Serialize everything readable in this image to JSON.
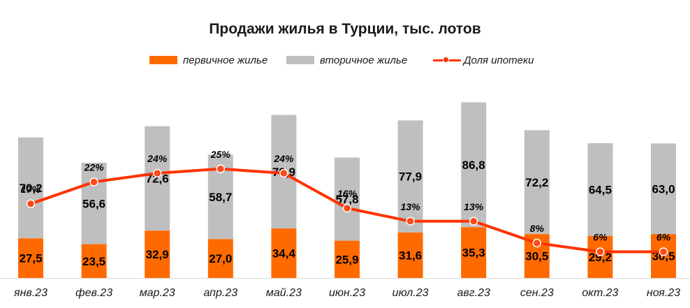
{
  "chart_data": {
    "type": "bar",
    "stacked": true,
    "title": "Продажи жилья в Турции, тыс. лотов",
    "categories": [
      "янв.23",
      "фев.23",
      "мар.23",
      "апр.23",
      "май.23",
      "июн.23",
      "июл.23",
      "авг.23",
      "сен.23",
      "окт.23",
      "ноя.23"
    ],
    "series": [
      {
        "name": "первичное жилье",
        "values": [
          27.5,
          23.5,
          32.9,
          27.0,
          34.4,
          25.9,
          31.6,
          35.3,
          30.5,
          29.2,
          30.5
        ],
        "color": "#ff6a00"
      },
      {
        "name": "вторичное жилье",
        "values": [
          70.2,
          56.6,
          72.6,
          58.7,
          78.9,
          57.8,
          77.9,
          86.8,
          72.2,
          64.5,
          63.0
        ],
        "color": "#bfbfbf"
      }
    ],
    "line_series": {
      "name": "Доля ипотеки",
      "values": [
        17,
        22,
        24,
        25,
        24,
        16,
        13,
        13,
        8,
        6,
        6
      ],
      "unit": "%",
      "color": "#ff3300"
    },
    "bar_labels": {
      "primary": [
        "27,5",
        "23,5",
        "32,9",
        "27,0",
        "34,4",
        "25,9",
        "31,6",
        "35,3",
        "30,5",
        "29,2",
        "30,5"
      ],
      "secondary": [
        "70,2",
        "56,6",
        "72,6",
        "58,7",
        "78,9",
        "57,8",
        "77,9",
        "86,8",
        "72,2",
        "64,5",
        "63,0"
      ],
      "line": [
        "17%",
        "22%",
        "24%",
        "25%",
        "24%",
        "16%",
        "13%",
        "13%",
        "8%",
        "6%",
        "6%"
      ]
    },
    "ylim": [
      0,
      122
    ],
    "line_ylim": [
      0,
      40
    ],
    "legend_position": "top"
  }
}
